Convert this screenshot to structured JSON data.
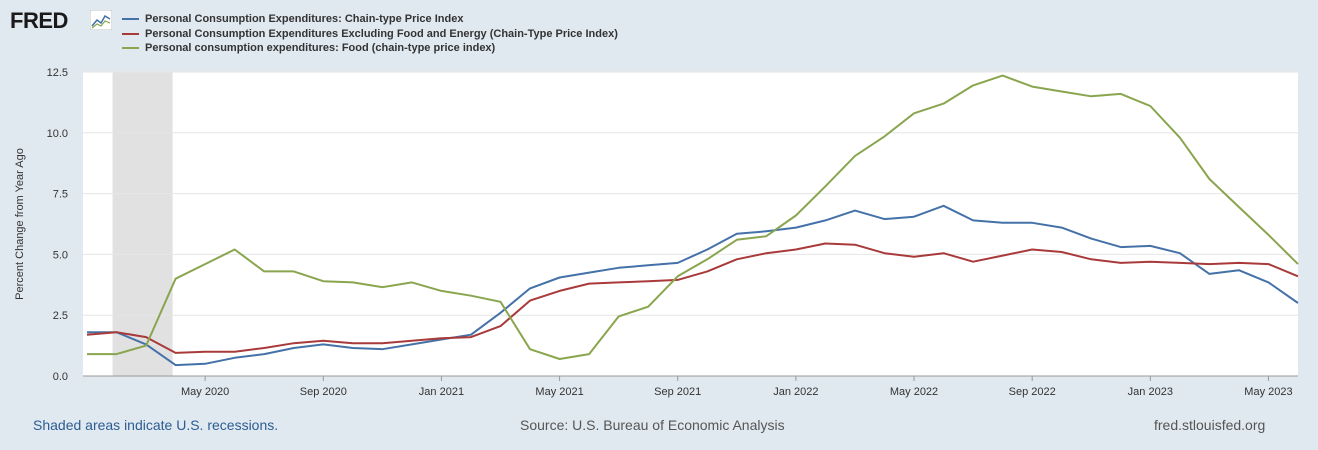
{
  "brand": {
    "logo_text": "FRED"
  },
  "footer": {
    "recession_note": "Shaded areas indicate U.S. recessions.",
    "source": "Source: U.S. Bureau of Economic Analysis",
    "site": "fred.stlouisfed.org"
  },
  "chart_data": {
    "type": "line",
    "title": "",
    "xlabel": "",
    "ylabel": "Percent Change from Year Ago",
    "ylim": [
      0,
      12.5
    ],
    "yticks": [
      "0.0",
      "2.5",
      "5.0",
      "7.5",
      "10.0",
      "12.5"
    ],
    "grid": true,
    "legend_position": "top-left",
    "x_tick_labels": [
      "May 2020",
      "Sep 2020",
      "Jan 2021",
      "May 2021",
      "Sep 2021",
      "Jan 2022",
      "May 2022",
      "Sep 2022",
      "Jan 2023",
      "May 2023"
    ],
    "x_tick_indices": [
      4,
      8,
      12,
      16,
      20,
      24,
      28,
      32,
      36,
      40
    ],
    "x_start": "Jan 2020",
    "x_end": "Jun 2023",
    "recession": {
      "start_index": 1,
      "end_index": 3,
      "color": "#e1e1e1"
    },
    "series": [
      {
        "name": "Personal Consumption Expenditures: Chain-type Price Index",
        "color": "#4472a8",
        "values": [
          1.8,
          1.8,
          1.3,
          0.45,
          0.5,
          0.75,
          0.9,
          1.15,
          1.3,
          1.15,
          1.1,
          1.3,
          1.5,
          1.7,
          2.6,
          3.6,
          4.05,
          4.25,
          4.45,
          4.55,
          4.65,
          5.2,
          5.85,
          5.95,
          6.1,
          6.4,
          6.8,
          6.45,
          6.55,
          7.0,
          6.4,
          6.3,
          6.3,
          6.1,
          5.65,
          5.3,
          5.35,
          5.05,
          4.2,
          4.35,
          3.85,
          3.0
        ]
      },
      {
        "name": "Personal Consumption Expenditures Excluding Food and Energy (Chain-Type Price Index)",
        "color": "#a93a3a",
        "values": [
          1.7,
          1.8,
          1.6,
          0.95,
          1.0,
          1.0,
          1.15,
          1.35,
          1.45,
          1.35,
          1.35,
          1.45,
          1.55,
          1.6,
          2.05,
          3.1,
          3.5,
          3.8,
          3.85,
          3.9,
          3.95,
          4.3,
          4.8,
          5.05,
          5.2,
          5.45,
          5.4,
          5.05,
          4.9,
          5.05,
          4.7,
          4.95,
          5.2,
          5.1,
          4.8,
          4.65,
          4.7,
          4.65,
          4.6,
          4.65,
          4.6,
          4.1
        ]
      },
      {
        "name": "Personal consumption expenditures: Food (chain-type price index)",
        "color": "#89a54e",
        "values": [
          0.9,
          0.9,
          1.25,
          4.0,
          4.6,
          5.2,
          4.3,
          4.3,
          3.9,
          3.85,
          3.65,
          3.85,
          3.5,
          3.3,
          3.05,
          1.1,
          0.7,
          0.9,
          2.45,
          2.85,
          4.1,
          4.8,
          5.6,
          5.75,
          6.6,
          7.8,
          9.05,
          9.85,
          10.8,
          11.2,
          11.95,
          12.35,
          11.9,
          11.7,
          11.5,
          11.6,
          11.1,
          9.8,
          8.1,
          6.95,
          5.8,
          4.6
        ]
      }
    ]
  }
}
